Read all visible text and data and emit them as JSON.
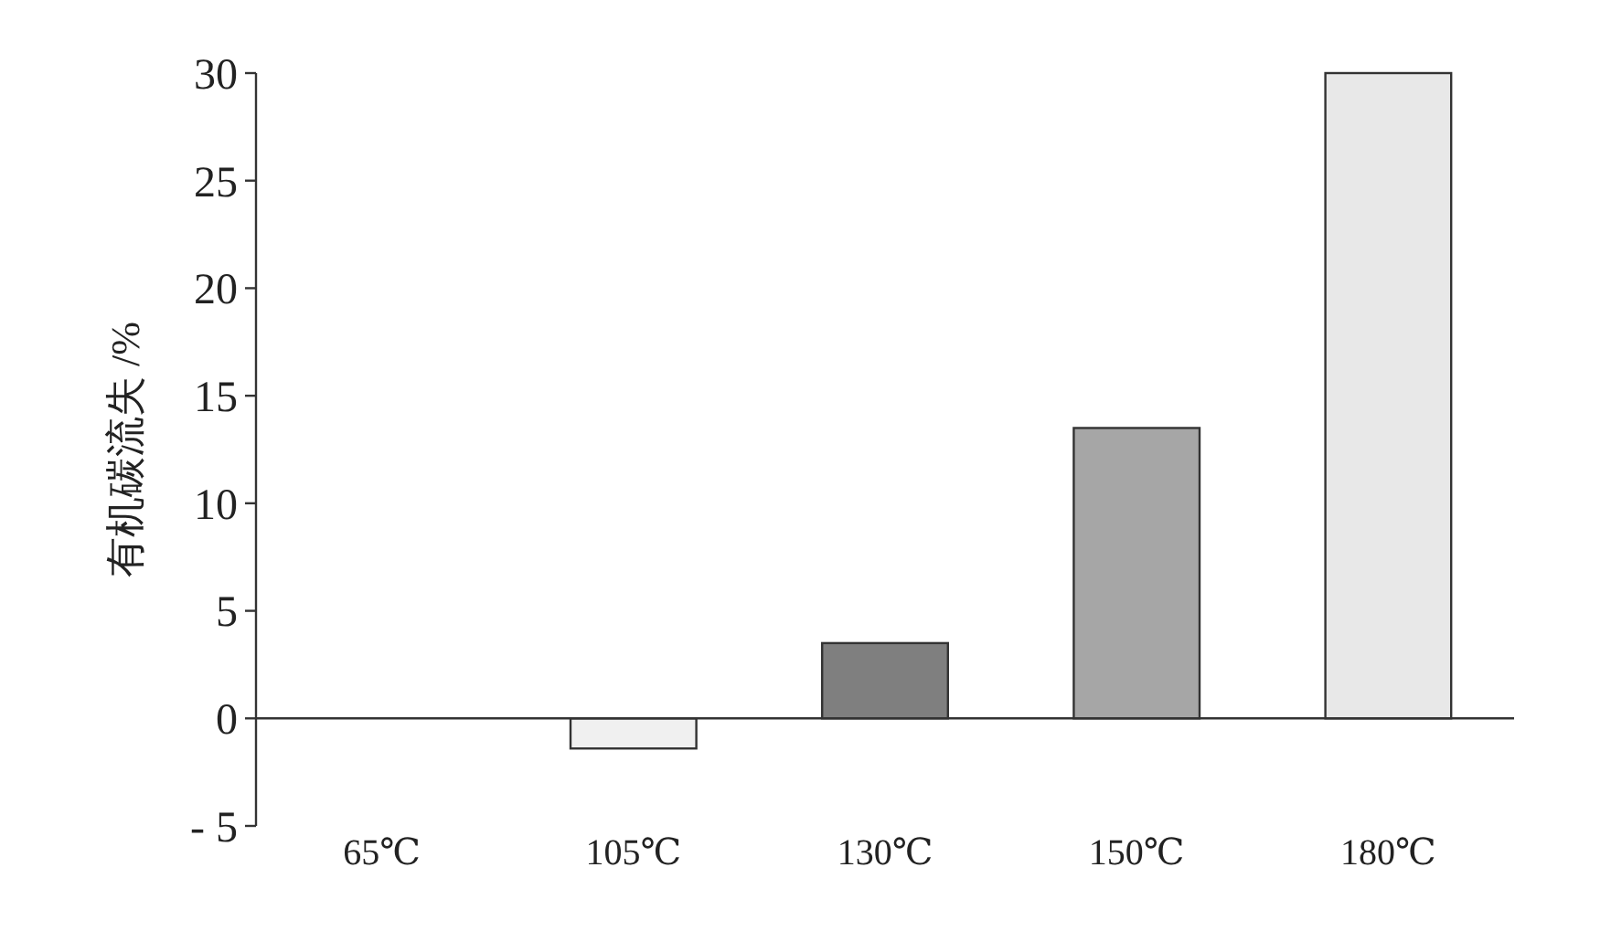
{
  "chart_data": {
    "type": "bar",
    "ylabel": "有机碳流失 /%",
    "categories": [
      "65℃",
      "105℃",
      "130℃",
      "150℃",
      "180℃"
    ],
    "values": [
      0,
      -1.4,
      3.5,
      13.5,
      30
    ],
    "colors": [
      "#ffffff",
      "#f0f0f0",
      "#7f7f7f",
      "#a6a6a6",
      "#e8e8e8"
    ],
    "ylim": [
      -5,
      30
    ],
    "yticks": [
      {
        "value": -5,
        "label": "- 5"
      },
      0,
      5,
      10,
      15,
      20,
      25,
      30
    ]
  }
}
